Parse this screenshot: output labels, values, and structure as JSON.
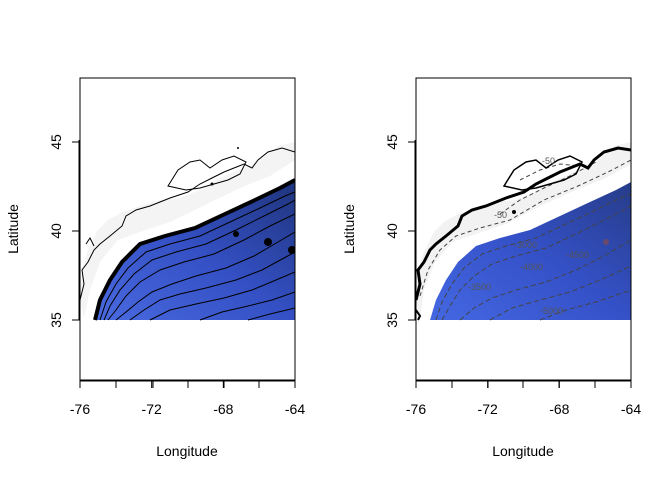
{
  "panels": [
    {
      "id": "left",
      "xlabel": "Longitude",
      "ylabel": "Latitude",
      "x_ticks": [
        "-76",
        "-72",
        "-68",
        "-64"
      ],
      "y_ticks": [
        "35",
        "40",
        "45"
      ],
      "contour_labels": []
    },
    {
      "id": "right",
      "xlabel": "Longitude",
      "ylabel": "Latitude",
      "x_ticks": [
        "-76",
        "-72",
        "-68",
        "-64"
      ],
      "y_ticks": [
        "35",
        "40",
        "45"
      ],
      "contour_labels": [
        "-50",
        "-50",
        "-3000",
        "-4000",
        "-4500",
        "-3500",
        "-5000"
      ]
    }
  ],
  "colors": {
    "deep": "#1c2f6e",
    "mid": "#3456c8",
    "shelf": "#f2f2f2",
    "contour": "#000000"
  }
}
